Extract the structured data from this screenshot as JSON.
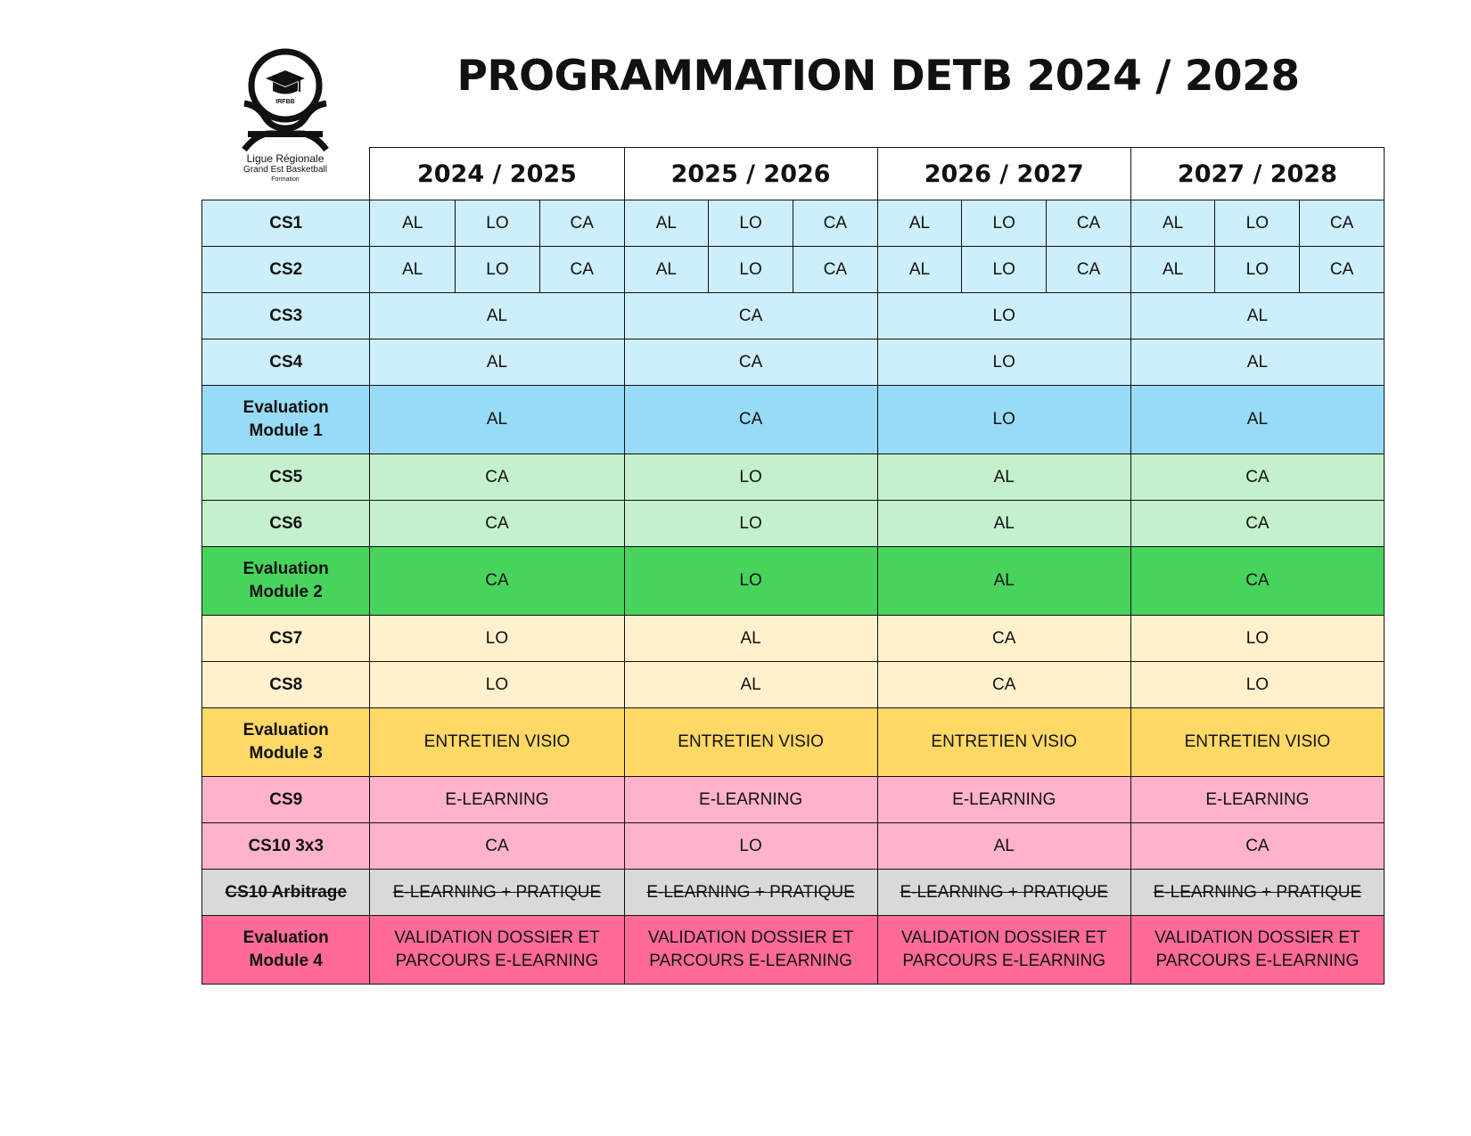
{
  "logo": {
    "icon": "graduation-cap-icon",
    "seal_text": "IRFBB",
    "line1": "Ligue Régionale",
    "line2": "Grand Est Basketball",
    "line3": "Formation"
  },
  "title": "PROGRAMMATION DETB 2024 / 2028",
  "colors": {
    "blue_light": "#cdeefb",
    "blue_eval": "#97dbf6",
    "green_light": "#c4f0cb",
    "green_eval": "#47d35c",
    "yellow_light": "#fff1cc",
    "yellow_eval": "#ffd866",
    "pink_light": "#ffb3ca",
    "grey": "#d9d9d9",
    "pink_eval": "#ff6b97"
  },
  "years": [
    "2024 / 2025",
    "2025 / 2026",
    "2026 / 2027",
    "2027 / 2028"
  ],
  "rows": {
    "cs1": {
      "label": "CS1",
      "cells": [
        "AL",
        "LO",
        "CA",
        "AL",
        "LO",
        "CA",
        "AL",
        "LO",
        "CA",
        "AL",
        "LO",
        "CA"
      ]
    },
    "cs2": {
      "label": "CS2",
      "cells": [
        "AL",
        "LO",
        "CA",
        "AL",
        "LO",
        "CA",
        "AL",
        "LO",
        "CA",
        "AL",
        "LO",
        "CA"
      ]
    },
    "cs3": {
      "label": "CS3",
      "cells": [
        "AL",
        "CA",
        "LO",
        "AL"
      ]
    },
    "cs4": {
      "label": "CS4",
      "cells": [
        "AL",
        "CA",
        "LO",
        "AL"
      ]
    },
    "eval1": {
      "label1": "Evaluation",
      "label2": "Module 1",
      "cells": [
        "AL",
        "CA",
        "LO",
        "AL"
      ]
    },
    "cs5": {
      "label": "CS5",
      "cells": [
        "CA",
        "LO",
        "AL",
        "CA"
      ]
    },
    "cs6": {
      "label": "CS6",
      "cells": [
        "CA",
        "LO",
        "AL",
        "CA"
      ]
    },
    "eval2": {
      "label1": "Evaluation",
      "label2": "Module 2",
      "cells": [
        "CA",
        "LO",
        "AL",
        "CA"
      ]
    },
    "cs7": {
      "label": "CS7",
      "cells": [
        "LO",
        "AL",
        "CA",
        "LO"
      ]
    },
    "cs8": {
      "label": "CS8",
      "cells": [
        "LO",
        "AL",
        "CA",
        "LO"
      ]
    },
    "eval3": {
      "label1": "Evaluation",
      "label2": "Module 3",
      "cells": [
        "ENTRETIEN VISIO",
        "ENTRETIEN VISIO",
        "ENTRETIEN VISIO",
        "ENTRETIEN VISIO"
      ]
    },
    "cs9": {
      "label": "CS9",
      "cells": [
        "E-LEARNING",
        "E-LEARNING",
        "E-LEARNING",
        "E-LEARNING"
      ]
    },
    "cs10_3x3": {
      "label": "CS10 3x3",
      "cells": [
        "CA",
        "LO",
        "AL",
        "CA"
      ]
    },
    "cs10_arb": {
      "label": "CS10 Arbitrage",
      "cells": [
        "E-LEARNING + PRATIQUE",
        "E-LEARNING + PRATIQUE",
        "E-LEARNING + PRATIQUE",
        "E-LEARNING + PRATIQUE"
      ]
    },
    "eval4": {
      "label1": "Evaluation",
      "label2": "Module 4",
      "cells": [
        {
          "line1": "VALIDATION DOSSIER ET",
          "line2": "PARCOURS E-LEARNING"
        },
        {
          "line1": "VALIDATION DOSSIER ET",
          "line2": "PARCOURS E-LEARNING"
        },
        {
          "line1": "VALIDATION DOSSIER ET",
          "line2": "PARCOURS E-LEARNING"
        },
        {
          "line1": "VALIDATION DOSSIER ET",
          "line2": "PARCOURS E-LEARNING"
        }
      ]
    }
  }
}
